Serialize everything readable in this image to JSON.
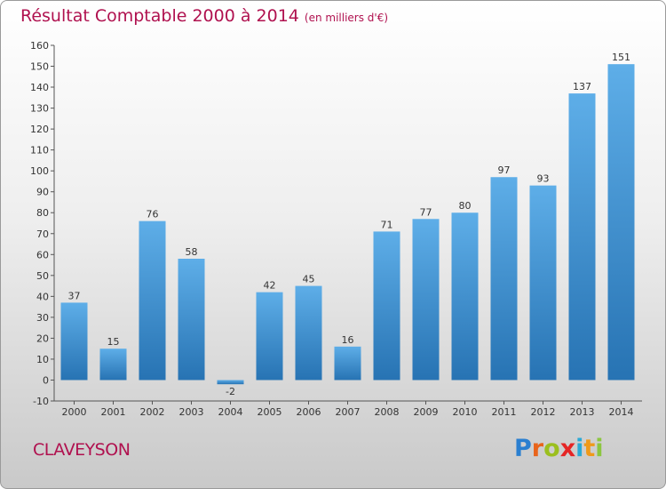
{
  "chart_data": {
    "type": "bar",
    "title": "Résultat Comptable 2000 à 2014",
    "subtitle": "(en milliers d'€)",
    "categories": [
      "2000",
      "2001",
      "2002",
      "2003",
      "2004",
      "2005",
      "2006",
      "2007",
      "2008",
      "2009",
      "2010",
      "2011",
      "2012",
      "2013",
      "2014"
    ],
    "values": [
      37,
      15,
      76,
      58,
      -2,
      42,
      45,
      16,
      71,
      77,
      80,
      97,
      93,
      137,
      151
    ],
    "data_labels": [
      "37",
      "15",
      "76",
      "58",
      "-2",
      "42",
      "45",
      "16",
      "71",
      "77",
      "80",
      "97",
      "93",
      "137",
      "151"
    ],
    "xlabel": "",
    "ylabel": "",
    "ylim": [
      -10,
      160
    ],
    "yticks": [
      -10,
      0,
      10,
      20,
      30,
      40,
      50,
      60,
      70,
      80,
      90,
      100,
      110,
      120,
      130,
      140,
      150,
      160
    ],
    "grid": false,
    "legend": "none",
    "colors": {
      "bar_top": "#5eaee8",
      "bar_bottom": "#2773b3",
      "title": "#b0114f",
      "axis": "#555555"
    }
  },
  "footer": {
    "commune": "CLAVEYSON",
    "logo_text": "Proxiti"
  }
}
